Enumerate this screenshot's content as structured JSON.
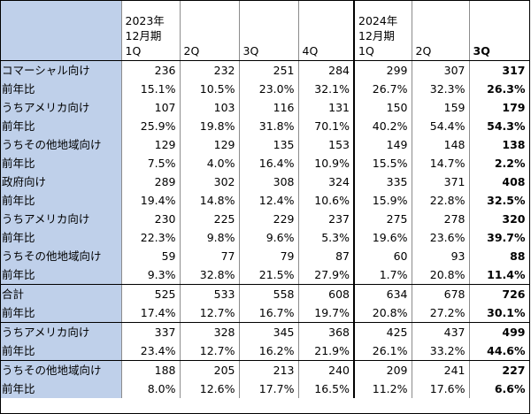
{
  "header": [
    "2023年\n12月期\n1Q",
    "2Q",
    "3Q",
    "4Q",
    "2024年\n12月期\n1Q",
    "2Q",
    "3Q"
  ],
  "rows": [
    {
      "label": "コマーシャル向け",
      "values": [
        "236",
        "232",
        "251",
        "284",
        "299",
        "307",
        "317"
      ]
    },
    {
      "label": "前年比",
      "values": [
        "15.1%",
        "10.5%",
        "23.0%",
        "32.1%",
        "26.7%",
        "32.3%",
        "26.3%"
      ]
    },
    {
      "label": "うちアメリカ向け",
      "values": [
        "107",
        "103",
        "116",
        "131",
        "150",
        "159",
        "179"
      ]
    },
    {
      "label": "前年比",
      "values": [
        "25.9%",
        "19.8%",
        "31.8%",
        "70.1%",
        "40.2%",
        "54.4%",
        "54.3%"
      ]
    },
    {
      "label": "うちその他地域向け",
      "values": [
        "129",
        "129",
        "135",
        "153",
        "149",
        "148",
        "138"
      ]
    },
    {
      "label": "前年比",
      "values": [
        "7.5%",
        "4.0%",
        "16.4%",
        "10.9%",
        "15.5%",
        "14.7%",
        "2.2%"
      ]
    },
    {
      "label": "政府向け",
      "values": [
        "289",
        "302",
        "308",
        "324",
        "335",
        "371",
        "408"
      ]
    },
    {
      "label": "前年比",
      "values": [
        "19.4%",
        "14.8%",
        "12.4%",
        "10.6%",
        "15.9%",
        "22.8%",
        "32.5%"
      ]
    },
    {
      "label": "うちアメリカ向け",
      "values": [
        "230",
        "225",
        "229",
        "237",
        "275",
        "278",
        "320"
      ]
    },
    {
      "label": "前年比",
      "values": [
        "22.3%",
        "9.8%",
        "9.6%",
        "5.3%",
        "19.6%",
        "23.6%",
        "39.7%"
      ]
    },
    {
      "label": "うちその他地域向け",
      "values": [
        "59",
        "77",
        "79",
        "87",
        "60",
        "93",
        "88"
      ]
    },
    {
      "label": "前年比",
      "values": [
        "9.3%",
        "32.8%",
        "21.5%",
        "27.9%",
        "1.7%",
        "20.8%",
        "11.4%"
      ]
    },
    {
      "label": "合計",
      "values": [
        "525",
        "533",
        "558",
        "608",
        "634",
        "678",
        "726"
      ]
    },
    {
      "label": "前年比",
      "values": [
        "17.4%",
        "12.7%",
        "16.7%",
        "19.7%",
        "20.8%",
        "27.2%",
        "30.1%"
      ]
    },
    {
      "label": "うちアメリカ向け",
      "values": [
        "337",
        "328",
        "345",
        "368",
        "425",
        "437",
        "499"
      ]
    },
    {
      "label": "前年比",
      "values": [
        "23.4%",
        "12.7%",
        "16.2%",
        "21.9%",
        "26.1%",
        "33.2%",
        "44.6%"
      ]
    },
    {
      "label": "うちその他地域向け",
      "values": [
        "188",
        "205",
        "213",
        "240",
        "209",
        "241",
        "227"
      ]
    },
    {
      "label": "前年比",
      "values": [
        "8.0%",
        "12.6%",
        "17.7%",
        "16.5%",
        "11.2%",
        "17.6%",
        "6.6%"
      ]
    }
  ]
}
